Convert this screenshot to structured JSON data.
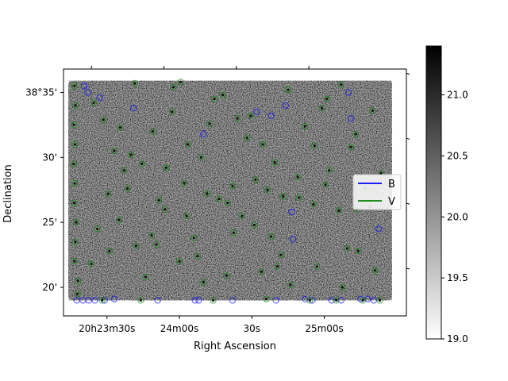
{
  "chart_data": {
    "type": "scatter",
    "title": "",
    "xlabel": "Right Ascension",
    "ylabel": "Declination",
    "x_ticks": [
      "20h23m30s",
      "24m00s",
      "30s",
      "25m00s"
    ],
    "y_ticks": [
      "38°35'",
      "30'",
      "25'",
      "20'"
    ],
    "x_range_ra_seconds_of_20h": [
      1392,
      1534
    ],
    "y_range_dec_arcmin_above_38deg": [
      17.8,
      36.8
    ],
    "x_tick_values_ra_seconds_of_20h": [
      1410,
      1440,
      1470,
      1500
    ],
    "y_tick_values_dec_arcmin_above_38deg": [
      35,
      30,
      25,
      20
    ],
    "image": {
      "description": "grayscale sky image, reversed gray colormap",
      "ra_extent_seconds_of_20h": [
        1394,
        1528
      ],
      "dec_extent_arcmin_above_38deg": [
        19.0,
        35.9
      ]
    },
    "colorbar": {
      "colormap": "gray_r",
      "min": 19.0,
      "max": 21.4,
      "ticks": [
        "19.0",
        "19.5",
        "20.0",
        "20.5",
        "21.0"
      ],
      "tick_values": [
        19.0,
        19.5,
        20.0,
        20.5,
        21.0
      ]
    },
    "legend": {
      "placement": "center-right",
      "entries": [
        {
          "label": "B",
          "color": "#0000ff"
        },
        {
          "label": "V",
          "color": "#008000"
        }
      ]
    },
    "series": [
      {
        "name": "B",
        "color": "#0000ff",
        "x_ra_seconds_of_20h": [
          1397.5,
          1400.0,
          1402.5,
          1405.0,
          1409.0,
          1413.0,
          1431.0,
          1446.5,
          1448.0,
          1462.0,
          1480.0,
          1492.0,
          1495.0,
          1503.0,
          1507.0,
          1515.0,
          1518.0,
          1520.5,
          1400.5,
          1402.0,
          1407.0,
          1421.0,
          1450.0,
          1472.0,
          1478.0,
          1484.0,
          1486.5,
          1487.0,
          1510.0,
          1511.0,
          1522.5
        ],
        "y_dec_arcmin_above_38deg": [
          19.0,
          19.0,
          19.0,
          19.0,
          19.0,
          19.1,
          19.0,
          19.0,
          19.0,
          19.0,
          19.0,
          19.1,
          19.0,
          19.0,
          19.0,
          19.1,
          19.1,
          19.0,
          35.5,
          35.0,
          34.6,
          33.8,
          31.8,
          33.5,
          33.2,
          34.0,
          25.8,
          23.7,
          35.0,
          33.0,
          24.5
        ]
      },
      {
        "name": "V",
        "color": "#008000",
        "x_ra_seconds_of_20h": [
          1396.5,
          1397.0,
          1396.3,
          1396.8,
          1396.2,
          1396.6,
          1396.4,
          1397.2,
          1396.9,
          1396.5,
          1398.0,
          1397.8,
          1408.0,
          1424.0,
          1454.0,
          1476.0,
          1494.0,
          1516.0,
          1523.0,
          1505.0,
          1456.5,
          1460.0,
          1451.5,
          1462.0,
          1434.0,
          1442.0,
          1449.0,
          1466.0,
          1476.5,
          1489.0,
          1413.0,
          1415.0,
          1429.0,
          1437.0,
          1446.0,
          1468.0,
          1482.0,
          1501.0,
          1511.0,
          1519.0,
          1403.5,
          1406.0,
          1410.5,
          1417.0,
          1422.0,
          1426.0,
          1431.5,
          1440.0,
          1443.5,
          1458.0,
          1464.0,
          1471.0,
          1474.0,
          1479.5,
          1485.0,
          1492.0,
          1497.0,
          1502.0,
          1506.0,
          1509.5,
          1513.0,
          1517.0,
          1520.0,
          1523.5,
          1428.5,
          1437.5,
          1450.0,
          1474.5,
          1495.5,
          1514.0,
          1404.5,
          1430.5,
          1452.5,
          1483.0,
          1507.5,
          1420.0,
          1447.5,
          1499.0,
          1408.5,
          1421.5,
          1459.5,
          1471.5,
          1507.0,
          1418.5,
          1443.0,
          1478.0,
          1496.0,
          1424.5,
          1454.5,
          1469.5,
          1486.0,
          1521.0,
          1411.0,
          1434.5,
          1462.5,
          1489.5,
          1500.5,
          1415.5,
          1440.5,
          1480.5,
          1513.5
        ],
        "y_dec_arcmin_above_38deg": [
          35.5,
          34.0,
          32.5,
          31.0,
          29.5,
          28.0,
          26.5,
          25.0,
          23.5,
          22.0,
          20.5,
          19.5,
          19.0,
          19.0,
          19.0,
          19.1,
          19.0,
          19.0,
          19.0,
          19.0,
          26.8,
          26.5,
          27.2,
          27.8,
          26.0,
          28.0,
          30.0,
          25.5,
          27.5,
          28.5,
          30.5,
          25.2,
          32.0,
          33.5,
          23.8,
          31.5,
          22.5,
          34.5,
          30.8,
          26.2,
          21.8,
          24.5,
          27.2,
          29.0,
          23.2,
          20.8,
          26.7,
          22.0,
          31.0,
          34.8,
          33.0,
          24.8,
          21.2,
          29.6,
          35.2,
          32.4,
          21.6,
          29.0,
          25.9,
          23.0,
          31.8,
          27.6,
          33.6,
          28.8,
          24.0,
          35.4,
          20.4,
          31.0,
          26.4,
          22.8,
          34.2,
          23.3,
          32.6,
          27.0,
          20.0,
          30.2,
          22.4,
          33.8,
          32.9,
          35.7,
          20.9,
          28.3,
          35.6,
          27.6,
          25.5,
          23.9,
          30.9,
          29.5,
          34.5,
          33.2,
          20.2,
          21.3,
          22.8,
          29.2,
          24.2,
          26.9,
          27.9,
          32.3,
          35.8,
          21.6,
          26.0
        ]
      }
    ]
  }
}
